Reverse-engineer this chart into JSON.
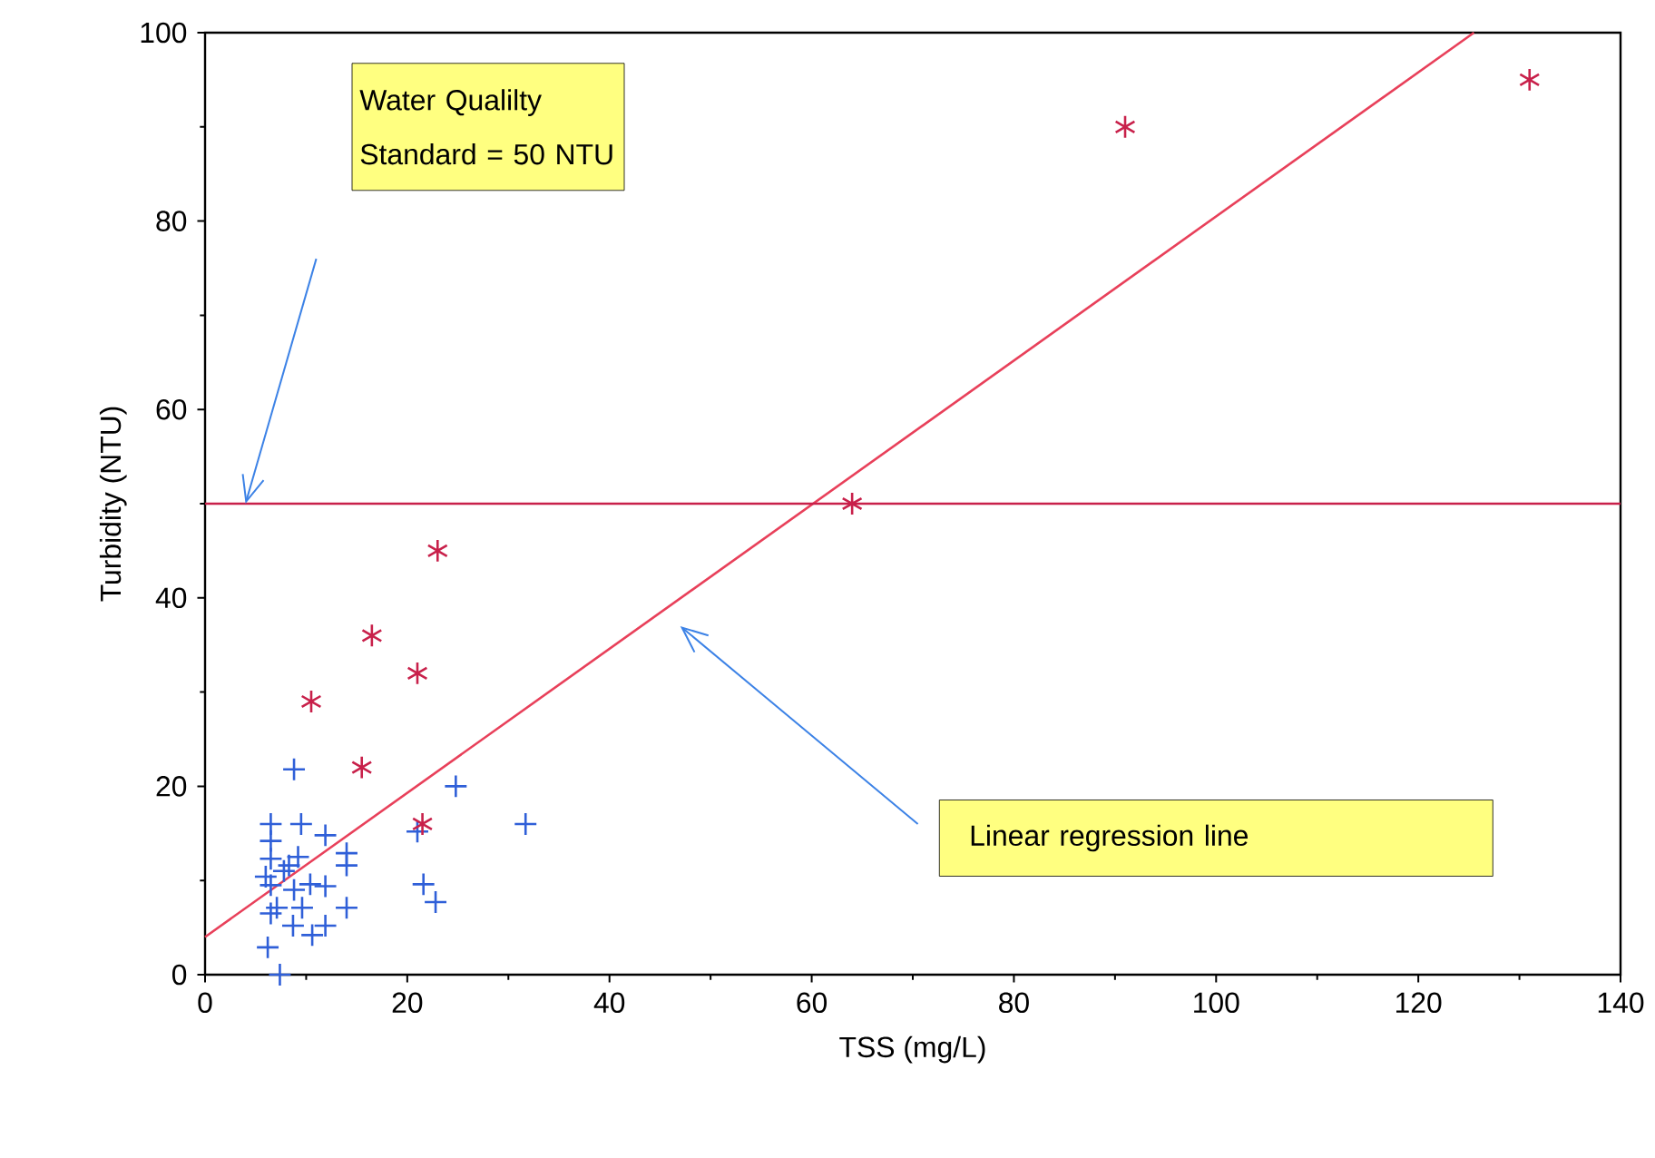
{
  "chart_data": {
    "type": "scatter",
    "xlabel": "TSS (mg/L)",
    "ylabel": "Turbidity (NTU)",
    "xlim": [
      0,
      140
    ],
    "ylim": [
      0,
      100
    ],
    "xticks": [
      0,
      20,
      40,
      60,
      80,
      100,
      120,
      140
    ],
    "yticks": [
      0,
      20,
      40,
      60,
      80,
      100
    ],
    "series": [
      {
        "marker": "cross",
        "color": "#2f5fd8",
        "x": [
          8.8,
          24.8,
          31.7,
          21,
          6.5,
          9.5,
          11.9,
          14,
          14,
          6.5,
          6.5,
          6.5,
          6.5,
          8.3,
          8.8,
          10.4,
          11.9,
          14,
          11.9,
          10.6,
          21.6,
          22.8,
          6.2,
          7.4,
          8.7,
          7.1,
          6,
          7.8,
          9.6,
          9.2
        ],
        "values": [
          21.8,
          20,
          16,
          15.2,
          16,
          16,
          14.8,
          12.9,
          11.6,
          14.2,
          12.3,
          9.5,
          6.5,
          11.6,
          9,
          9.6,
          9.4,
          7.1,
          5.2,
          4.2,
          9.6,
          7.7,
          2.9,
          0,
          5.2,
          7.1,
          10.4,
          11,
          7.1,
          12.5
        ]
      },
      {
        "color": "#c8204a",
        "x": [
          10.5,
          15.5,
          16.5,
          21,
          21.5,
          23,
          64,
          91,
          131
        ],
        "values": [
          29,
          22,
          36,
          32,
          16,
          45,
          50,
          90,
          95
        ]
      },
      {
        "type": "line",
        "marker": "none",
        "color": "#e8405a",
        "x": [
          0,
          125.5
        ],
        "values": [
          4,
          100
        ]
      }
    ],
    "ref_lines": [
      {
        "axis": "y",
        "value": 50,
        "color": "#c8204a"
      }
    ],
    "annotations": [
      "Water Qualilty Standard = 50 NTU",
      "Linear regression line"
    ]
  }
}
